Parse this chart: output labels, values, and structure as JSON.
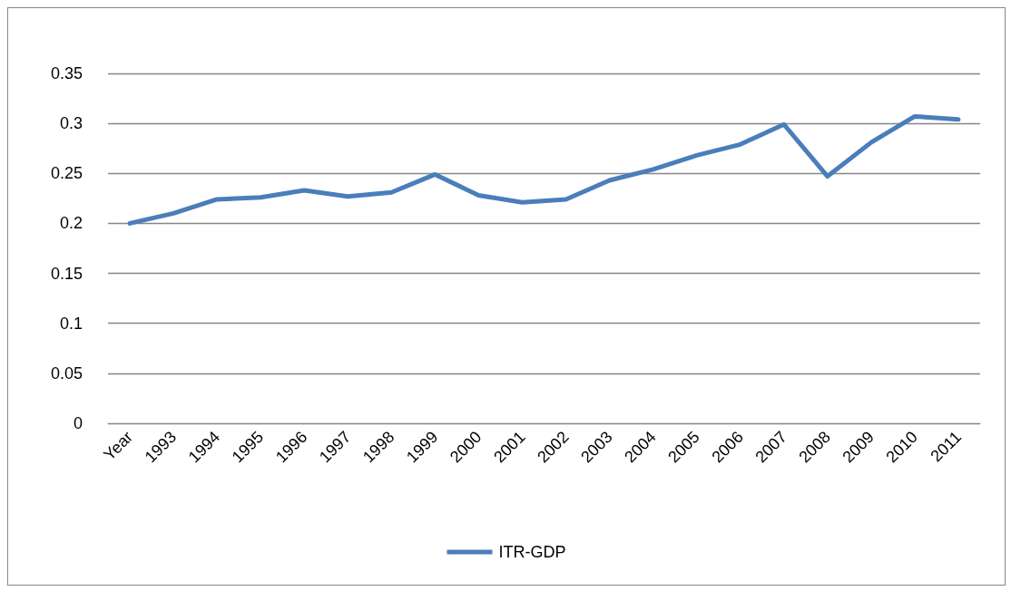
{
  "chart_data": {
    "type": "line",
    "categories": [
      "Year",
      "1993",
      "1994",
      "1995",
      "1996",
      "1997",
      "1998",
      "1999",
      "2000",
      "2001",
      "2002",
      "2003",
      "2004",
      "2005",
      "2006",
      "2007",
      "2008",
      "2009",
      "2010",
      "2011"
    ],
    "series": [
      {
        "name": "ITR-GDP",
        "color": "#4a7ebb",
        "values": [
          0.2,
          0.21,
          0.224,
          0.226,
          0.233,
          0.227,
          0.231,
          0.249,
          0.228,
          0.221,
          0.224,
          0.243,
          0.254,
          0.268,
          0.279,
          0.299,
          0.247,
          0.281,
          0.307,
          0.304
        ]
      }
    ],
    "ylim": [
      0,
      0.35
    ],
    "yticks": [
      0,
      0.05,
      0.1,
      0.15,
      0.2,
      0.25,
      0.3,
      0.35
    ],
    "grid": "y",
    "legend": "bottom",
    "marker": "none",
    "line_style": "solid"
  }
}
